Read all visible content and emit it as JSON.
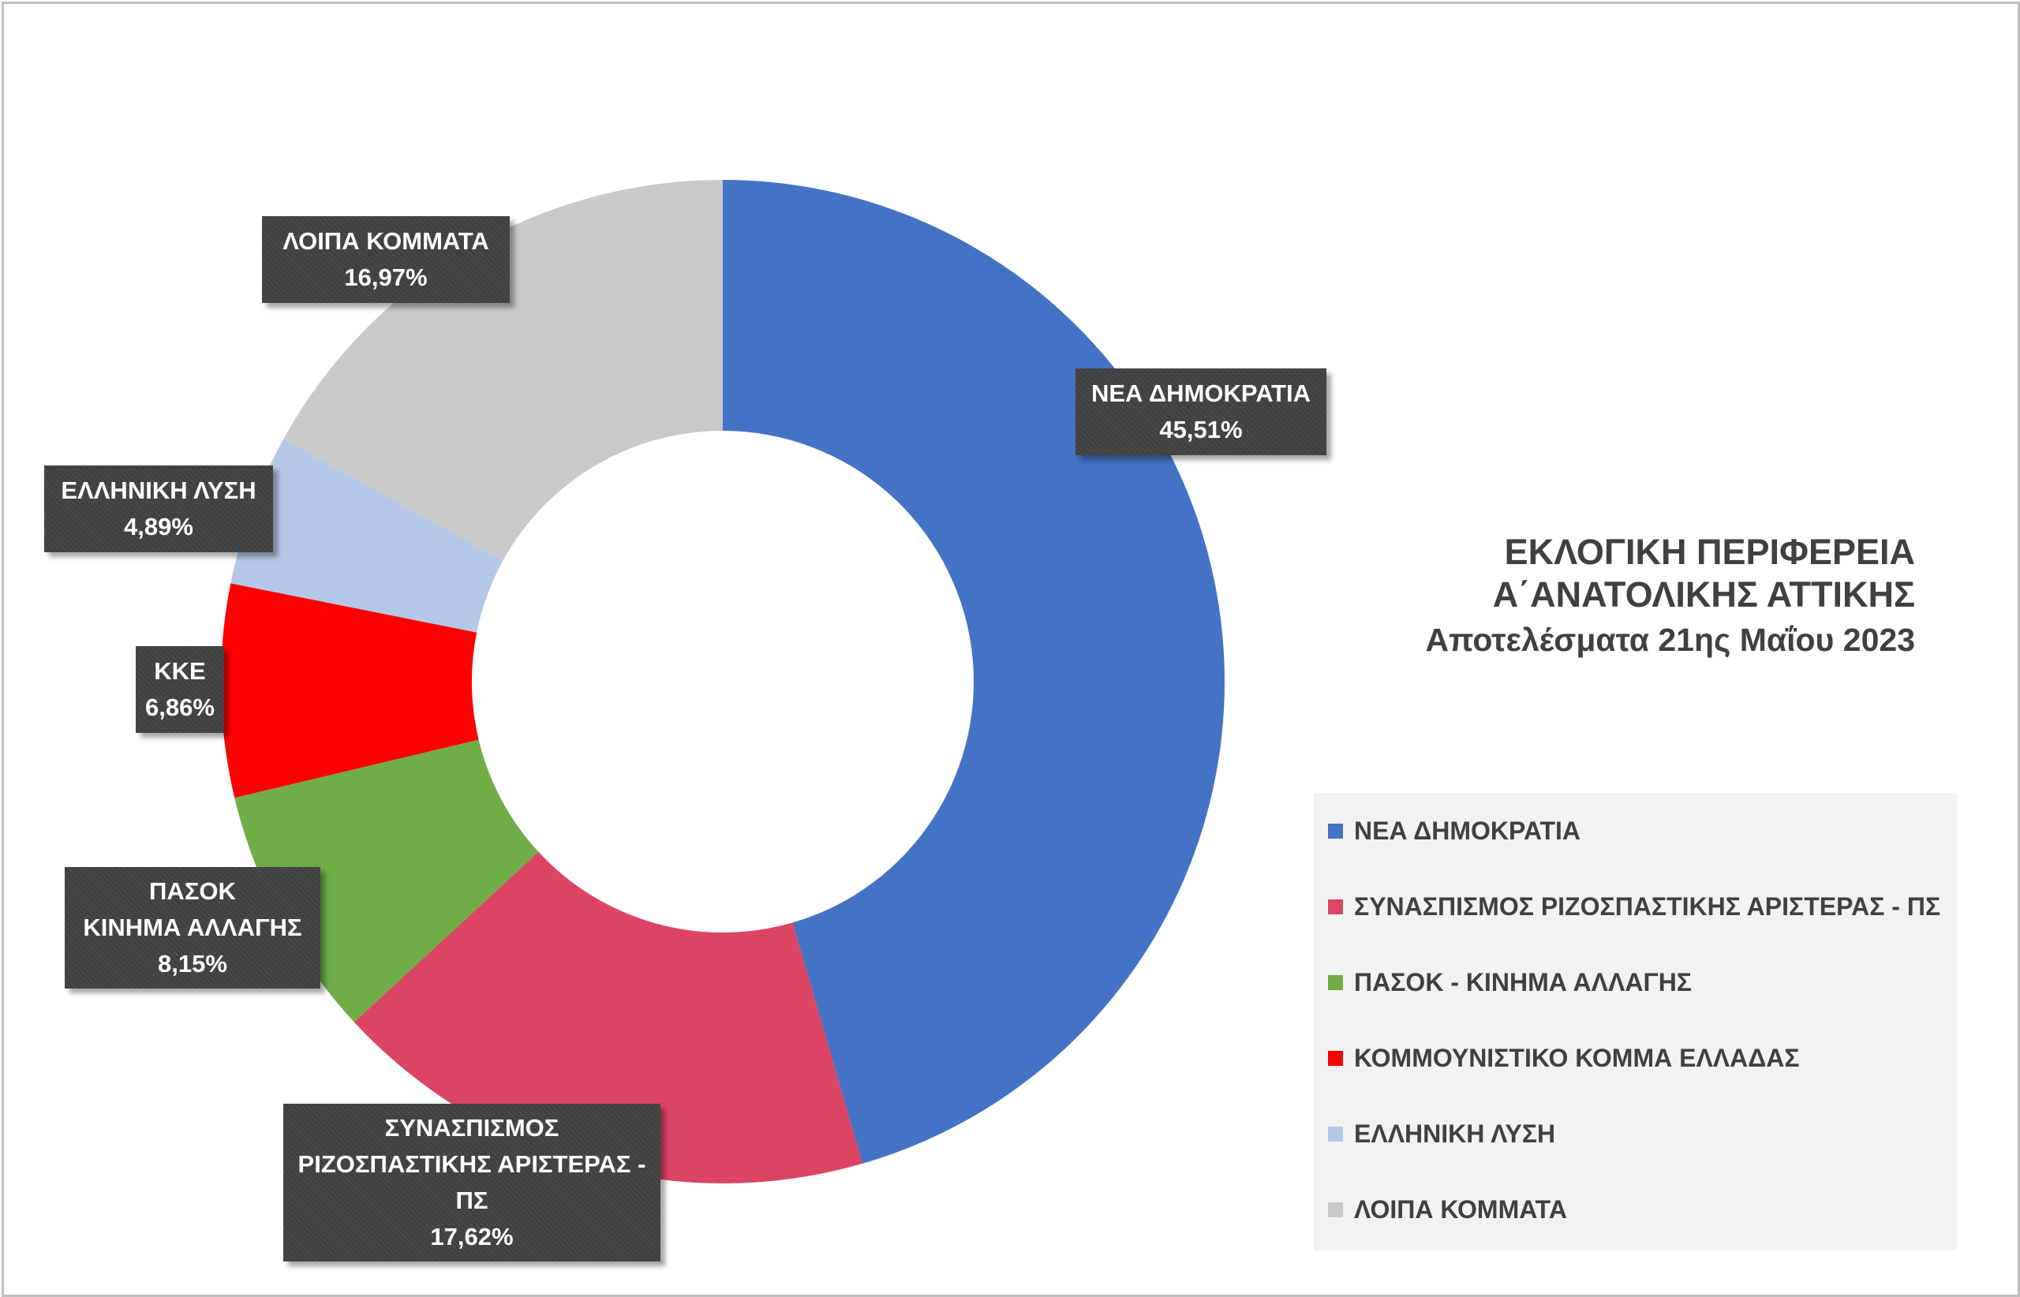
{
  "title": {
    "line1": "ΕΚΛΟΓΙΚΗ ΠΕΡΙΦΕΡΕΙΑ",
    "line2": "Α΄ΑΝΑΤΟΛΙΚΗΣ ΑΤΤΙΚΗΣ",
    "subtitle": "Αποτελέσματα 21ης Μαΐου 2023"
  },
  "chart_data": {
    "type": "pie",
    "variant": "donut",
    "start_angle_deg": 0,
    "direction": "clockwise",
    "legend_position": "bottom-right",
    "slices": [
      {
        "name": "ΝΕΑ ΔΗΜΟΚΡΑΤΙΑ",
        "value": 45.51,
        "label": "45,51%",
        "color": "#4472C4",
        "label_lines": [
          "ΝΕΑ ΔΗΜΟΚΡΑΤΙΑ"
        ]
      },
      {
        "name": "ΣΥΝΑΣΠΙΣΜΟΣ ΡΙΖΟΣΠΑΣΤΙΚΗΣ ΑΡΙΣΤΕΡΑΣ - ΠΣ",
        "value": 17.62,
        "label": "17,62%",
        "color": "#DC4464",
        "label_lines": [
          "ΣΥΝΑΣΠΙΣΜΟΣ",
          "ΡΙΖΟΣΠΑΣΤΙΚΗΣ ΑΡΙΣΤΕΡΑΣ -",
          "ΠΣ"
        ]
      },
      {
        "name": "ΠΑΣΟΚ - ΚΙΝΗΜΑ ΑΛΛΑΓΗΣ",
        "value": 8.15,
        "label": "8,15%",
        "color": "#70AD47",
        "label_lines": [
          "ΠΑΣΟΚ",
          "ΚΙΝΗΜΑ ΑΛΛΑΓΗΣ"
        ]
      },
      {
        "name": "ΚΟΜΜΟΥΝΙΣΤΙΚΟ ΚΟΜΜΑ ΕΛΛΑΔΑΣ",
        "value": 6.86,
        "label": "6,86%",
        "color": "#FF0000",
        "label_lines": [
          "ΚΚΕ"
        ]
      },
      {
        "name": "ΕΛΛΗΝΙΚΗ ΛΥΣΗ",
        "value": 4.89,
        "label": "4,89%",
        "color": "#B4C7E7",
        "label_lines": [
          "ΕΛΛΗΝΙΚΗ ΛΥΣΗ"
        ]
      },
      {
        "name": "ΛΟΙΠΑ ΚΟΜΜΑΤΑ",
        "value": 16.97,
        "label": "16,97%",
        "color": "#C9C9C9",
        "label_lines": [
          "ΛΟΙΠΑ ΚΟΜΜΑΤΑ"
        ]
      }
    ]
  }
}
